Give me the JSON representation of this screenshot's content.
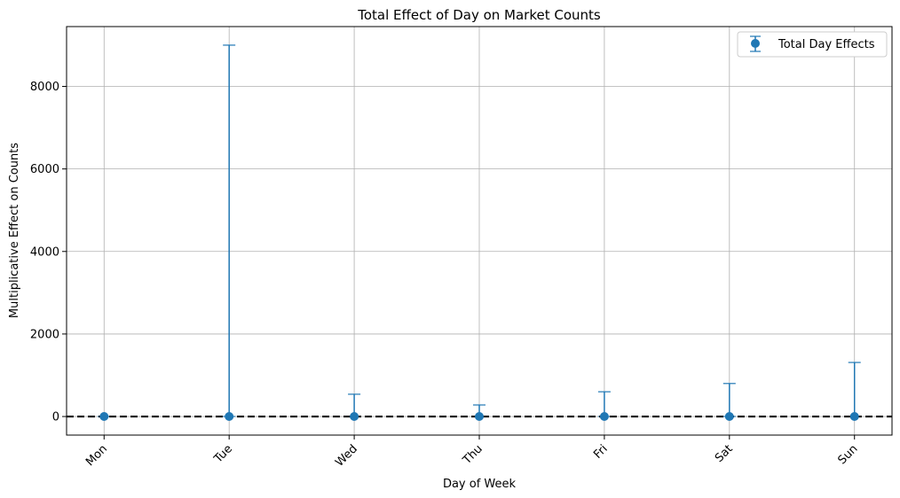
{
  "chart_data": {
    "type": "errorbar",
    "title": "Total Effect of Day on Market Counts",
    "xlabel": "Day of Week",
    "ylabel": "Multiplicative Effect on Counts",
    "categories": [
      "Mon",
      "Tue",
      "Wed",
      "Thu",
      "Fri",
      "Sat",
      "Sun"
    ],
    "series": [
      {
        "name": "Total Day Effects",
        "values": [
          1,
          1,
          1,
          1,
          1,
          1,
          1
        ],
        "upper": [
          1,
          9000,
          540,
          280,
          600,
          800,
          1310
        ],
        "lower": [
          1,
          1,
          1,
          1,
          1,
          1,
          1
        ],
        "color": "#1f77b4"
      }
    ],
    "reference_line": {
      "y": 0,
      "style": "dashed",
      "color": "#000000"
    },
    "yticks": [
      0,
      2000,
      4000,
      6000,
      8000
    ],
    "ylim": [
      -450,
      9450
    ],
    "grid": true,
    "legend": "top-right",
    "tick_rotation": 45
  }
}
